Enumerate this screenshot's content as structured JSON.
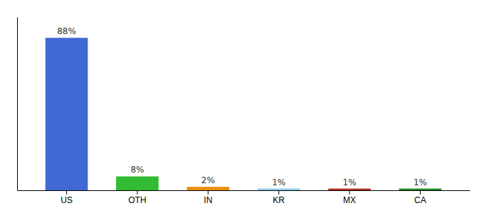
{
  "chart_data": {
    "type": "bar",
    "categories": [
      "US",
      "OTH",
      "IN",
      "KR",
      "MX",
      "CA"
    ],
    "values": [
      88,
      8,
      2,
      1,
      1,
      1
    ],
    "value_labels": [
      "88%",
      "8%",
      "2%",
      "1%",
      "1%",
      "1%"
    ],
    "colors": [
      "#4169d4",
      "#33bb33",
      "#e89010",
      "#88ccee",
      "#b03020",
      "#228822"
    ],
    "ylim": [
      0,
      100
    ],
    "data_labels": true,
    "tick_labels": "x",
    "grid": false
  }
}
